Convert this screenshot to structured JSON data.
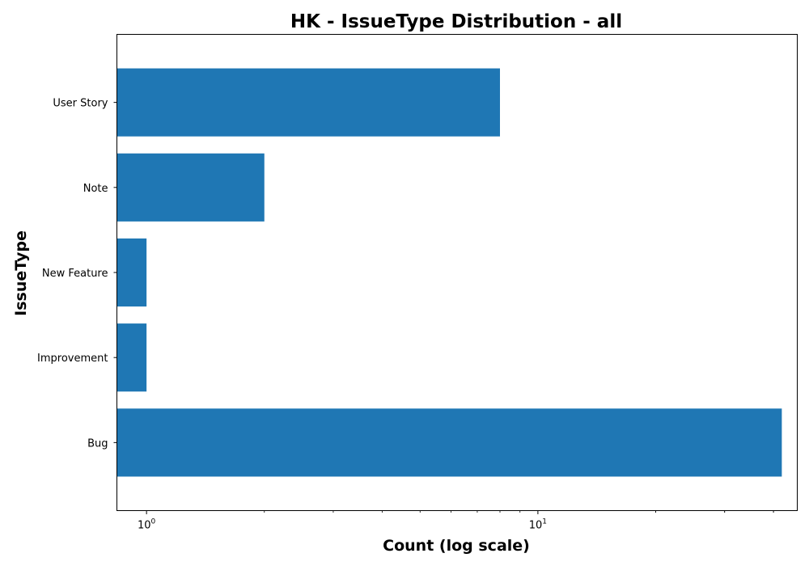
{
  "chart_data": {
    "type": "bar",
    "orientation": "horizontal",
    "title": "HK - IssueType Distribution - all",
    "xlabel": "Count (log scale)",
    "ylabel": "IssueType",
    "xscale": "log",
    "xlim": [
      0.84,
      46
    ],
    "grid": false,
    "categories": [
      "Bug",
      "Improvement",
      "New Feature",
      "Note",
      "User Story"
    ],
    "values": [
      42,
      1,
      1,
      2,
      8
    ],
    "x_tick_labels": [
      {
        "value": 1,
        "base": "10",
        "exp": "0"
      },
      {
        "value": 10,
        "base": "10",
        "exp": "1"
      }
    ],
    "bar_color": "#1f77b4"
  }
}
